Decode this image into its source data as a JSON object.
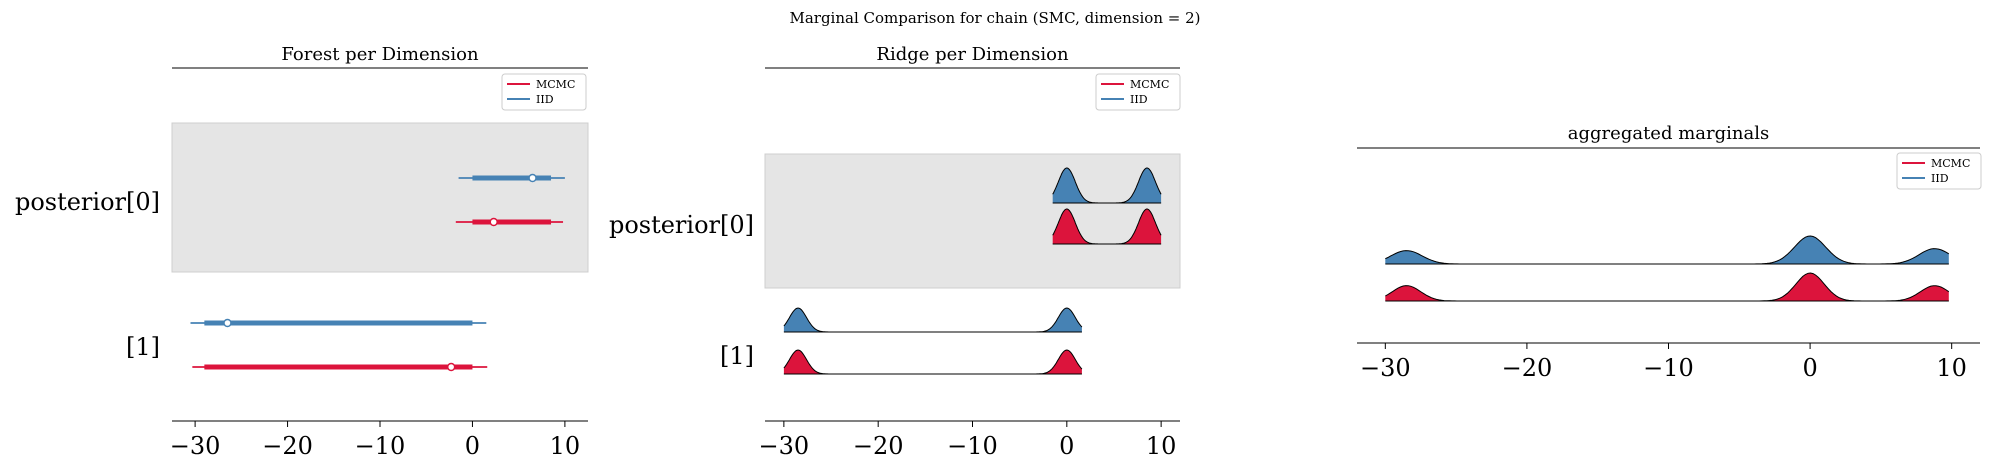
{
  "figure": {
    "suptitle": "Marginal Comparison for chain (SMC, dimension = 2)"
  },
  "colors": {
    "mcmc": "#dc143c",
    "iid": "#4682b4",
    "band": "#e5e5e5"
  },
  "legend": {
    "entries": [
      "MCMC",
      "IID"
    ]
  },
  "chart_data": [
    {
      "type": "forest",
      "title": "Forest per Dimension",
      "xlim": [
        -32.5,
        12.5
      ],
      "xticks": [
        -30,
        -20,
        -10,
        0,
        10
      ],
      "xtick_labels": [
        "−30",
        "−20",
        "−10",
        "0",
        "10"
      ],
      "legend_position": "top-right",
      "rows": [
        {
          "label": "posterior[0]",
          "shaded": true,
          "series": [
            {
              "name": "IID",
              "hdi94": [
                -1.5,
                10.0
              ],
              "iqr": [
                0.0,
                8.5
              ],
              "point": 6.5
            },
            {
              "name": "MCMC",
              "hdi94": [
                -1.8,
                9.8
              ],
              "iqr": [
                0.0,
                8.5
              ],
              "point": 2.3
            }
          ]
        },
        {
          "label": "[1]",
          "shaded": false,
          "series": [
            {
              "name": "IID",
              "hdi94": [
                -30.5,
                1.5
              ],
              "iqr": [
                -29.0,
                0.0
              ],
              "point": -26.5
            },
            {
              "name": "MCMC",
              "hdi94": [
                -30.3,
                1.6
              ],
              "iqr": [
                -29.0,
                0.0
              ],
              "point": -2.3
            }
          ]
        }
      ]
    },
    {
      "type": "ridgeplot",
      "title": "Ridge per Dimension",
      "xlim": [
        -32.0,
        12.0
      ],
      "xticks": [
        -30,
        -20,
        -10,
        0,
        10
      ],
      "xtick_labels": [
        "−30",
        "−20",
        "−10",
        "0",
        "10"
      ],
      "legend_position": "top-right",
      "rows": [
        {
          "label": "posterior[0]",
          "shaded": true,
          "series": [
            {
              "name": "IID",
              "range": [
                -1.5,
                10.0
              ],
              "peaks": [
                [
                  0.0,
                  1.0
                ],
                [
                  8.5,
                  1.0
                ]
              ],
              "sd": 0.9
            },
            {
              "name": "MCMC",
              "range": [
                -1.5,
                10.0
              ],
              "peaks": [
                [
                  0.0,
                  1.0
                ],
                [
                  8.5,
                  1.0
                ]
              ],
              "sd": 0.9
            }
          ]
        },
        {
          "label": "[1]",
          "shaded": false,
          "series": [
            {
              "name": "IID",
              "range": [
                -30.0,
                1.6
              ],
              "peaks": [
                [
                  -28.5,
                  1.0
                ],
                [
                  0.0,
                  1.0
                ]
              ],
              "sd": 0.9
            },
            {
              "name": "MCMC",
              "range": [
                -30.0,
                1.6
              ],
              "peaks": [
                [
                  -28.5,
                  1.0
                ],
                [
                  0.0,
                  1.0
                ]
              ],
              "sd": 0.9
            }
          ]
        }
      ]
    },
    {
      "type": "ridgeplot",
      "title": "aggregated marginals",
      "xlim": [
        -32.0,
        12.0
      ],
      "xticks": [
        -30,
        -20,
        -10,
        0,
        10
      ],
      "xtick_labels": [
        "−30",
        "−20",
        "−10",
        "0",
        "10"
      ],
      "legend_position": "top-right",
      "series": [
        {
          "name": "IID",
          "range": [
            -30.0,
            9.8
          ],
          "peaks": [
            [
              -28.5,
              0.48
            ],
            [
              0.0,
              1.0
            ],
            [
              8.8,
              0.55
            ]
          ],
          "sd": 1.1
        },
        {
          "name": "MCMC",
          "range": [
            -30.0,
            9.8
          ],
          "peaks": [
            [
              -28.5,
              0.55
            ],
            [
              0.0,
              1.0
            ],
            [
              8.8,
              0.55
            ]
          ],
          "sd": 1.0
        }
      ]
    }
  ]
}
